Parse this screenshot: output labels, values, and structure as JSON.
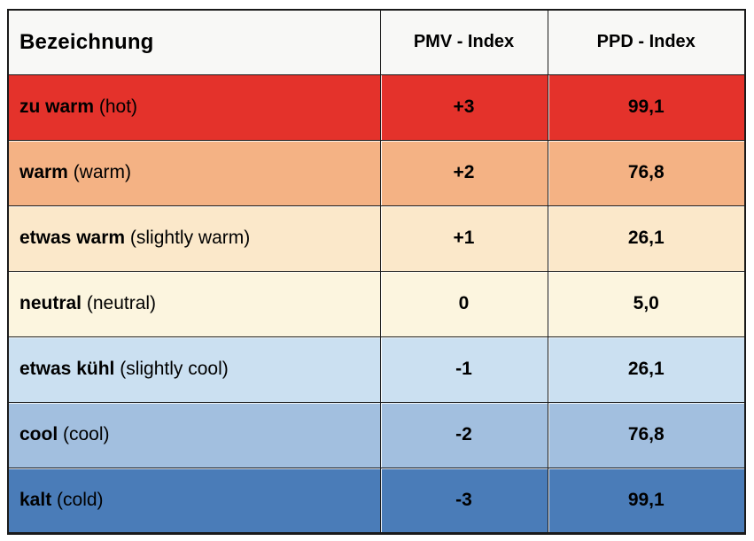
{
  "colors": {
    "page_background": "#ffffff",
    "header_background": "#f8f8f6",
    "grid_border": "#1a1a1a",
    "text": "#000000",
    "row_backgrounds": [
      "#e4322b",
      "#f4b284",
      "#fbe8ca",
      "#fcf5df",
      "#cbe0f1",
      "#a2bfdf",
      "#4a7cb8"
    ]
  },
  "table": {
    "columns": [
      {
        "label": "Bezeichnung",
        "align": "left"
      },
      {
        "label": "PMV - Index",
        "align": "center"
      },
      {
        "label": "PPD - Index",
        "align": "center"
      }
    ],
    "rows": [
      {
        "term": "zu warm",
        "translation": "(hot)",
        "pmv": "+3",
        "ppd": "99,1",
        "bg": "#e4322b"
      },
      {
        "term": "warm",
        "translation": "(warm)",
        "pmv": "+2",
        "ppd": "76,8",
        "bg": "#f4b284"
      },
      {
        "term": "etwas warm",
        "translation": "(slightly warm)",
        "pmv": "+1",
        "ppd": "26,1",
        "bg": "#fbe8ca"
      },
      {
        "term": "neutral",
        "translation": "(neutral)",
        "pmv": "0",
        "ppd": "5,0",
        "bg": "#fcf5df"
      },
      {
        "term": "etwas kühl",
        "translation": "(slightly cool)",
        "pmv": "-1",
        "ppd": "26,1",
        "bg": "#cbe0f1"
      },
      {
        "term": "cool",
        "translation": "(cool)",
        "pmv": "-2",
        "ppd": "76,8",
        "bg": "#a2bfdf"
      },
      {
        "term": "kalt",
        "translation": "(cold)",
        "pmv": "-3",
        "ppd": "99,1",
        "bg": "#4a7cb8"
      }
    ]
  },
  "chart_data": {
    "type": "table",
    "title": "",
    "columns": [
      "Bezeichnung",
      "PMV - Index",
      "PPD - Index"
    ],
    "rows": [
      [
        "zu warm (hot)",
        "+3",
        "99,1"
      ],
      [
        "warm (warm)",
        "+2",
        "76,8"
      ],
      [
        "etwas warm (slightly warm)",
        "+1",
        "26,1"
      ],
      [
        "neutral (neutral)",
        "0",
        "5,0"
      ],
      [
        "etwas kühl (slightly cool)",
        "-1",
        "26,1"
      ],
      [
        "cool (cool)",
        "-2",
        "76,8"
      ],
      [
        "kalt (cold)",
        "-3",
        "99,1"
      ]
    ],
    "row_colors": [
      "#e4322b",
      "#f4b284",
      "#fbe8ca",
      "#fcf5df",
      "#cbe0f1",
      "#a2bfdf",
      "#4a7cb8"
    ],
    "notes": "PMV thermal sensation scale with corresponding PPD percentages; decimal commas as shown; rows shaded from red (hot) to blue (cold)"
  }
}
